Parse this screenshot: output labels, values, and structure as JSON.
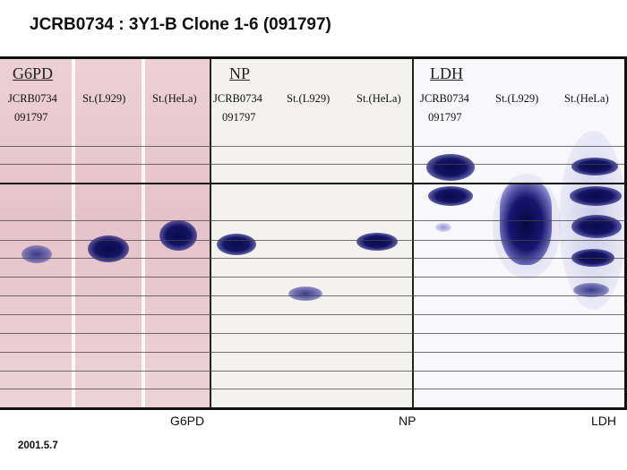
{
  "title": "JCRB0734 : 3Y1-B Clone 1-6 (091797)",
  "panels": {
    "g6pd": {
      "title": "G6PD",
      "lanes": [
        "JCRB0734",
        "091797",
        "St.(L929)",
        "St.(HeLa)"
      ]
    },
    "np": {
      "title": "NP",
      "lanes": [
        "JCRB0734",
        "091797",
        "St.(L929)",
        "St.(HeLa)"
      ]
    },
    "ldh": {
      "title": "LDH",
      "lanes": [
        "JCRB0734",
        "091797",
        "St.(L929)",
        "St.(HeLa)"
      ]
    }
  },
  "bottom_labels": {
    "g6pd": "G6PD",
    "np": "NP",
    "ldh": "LDH"
  },
  "date": "2001.5.7",
  "colors": {
    "g6pd_background": "#e8c8cf",
    "np_background": "#f3f2ef",
    "ldh_background": "#f8f8fb",
    "band": "#141466"
  }
}
